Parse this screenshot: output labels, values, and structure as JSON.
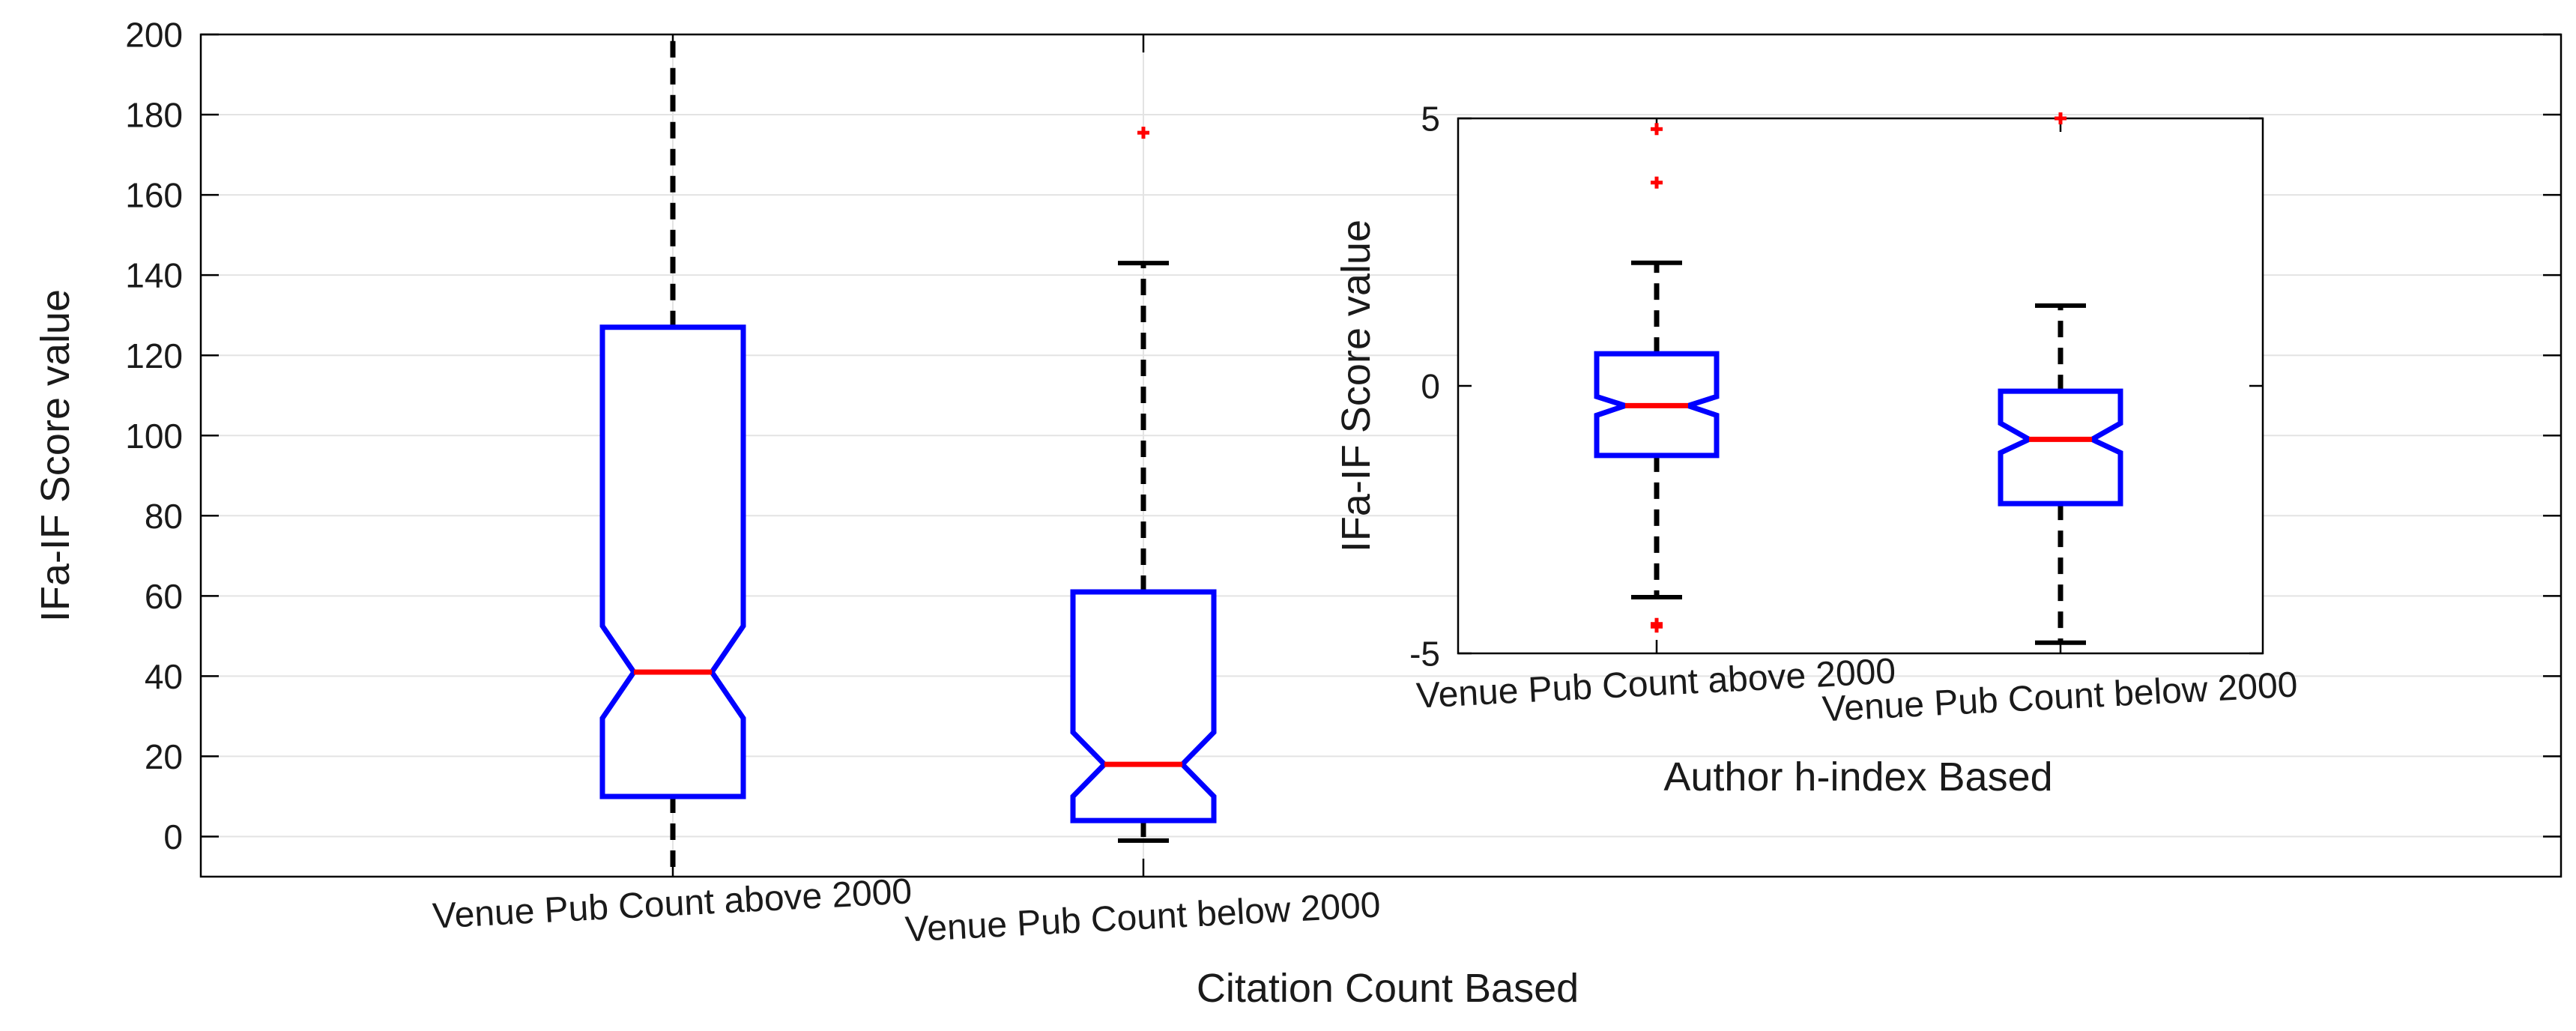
{
  "colors": {
    "box": "#0000ff",
    "median": "#ff0000",
    "outlier": "#ff0000",
    "whisker": "#000000",
    "grid": "#e3e3e3",
    "axis": "#000000"
  },
  "chart_data": [
    {
      "type": "boxplot",
      "notched": true,
      "xlabel": "Citation Count Based",
      "ylabel": "IFa-IF Score value",
      "ylim": [
        -10,
        200
      ],
      "yticks": [
        0,
        20,
        40,
        60,
        80,
        100,
        120,
        140,
        160,
        180,
        200
      ],
      "tick_labels_rotated": true,
      "grid": true,
      "categories": [
        "Venue Pub Count above 2000",
        "Venue Pub Count below 2000"
      ],
      "boxes": [
        {
          "category": "Venue Pub Count above 2000",
          "whisker_low": -10,
          "q1": 10,
          "notch_low": 29.5,
          "median": 41,
          "notch_high": 52.5,
          "q3": 127,
          "whisker_high": 200,
          "outliers": []
        },
        {
          "category": "Venue Pub Count below 2000",
          "whisker_low": -1,
          "q1": 4,
          "notch_low": 10,
          "median": 18,
          "notch_high": 26,
          "q3": 61,
          "whisker_high": 143,
          "outliers": [
            175.5
          ]
        }
      ]
    },
    {
      "type": "boxplot",
      "inset": true,
      "notched": true,
      "xlabel": "Author h-index Based",
      "ylabel": "IFa-IF Score value",
      "ylim": [
        -5,
        5
      ],
      "yticks": [
        -5,
        0,
        5
      ],
      "tick_labels_rotated": true,
      "grid": false,
      "categories": [
        "Venue Pub Count above 2000",
        "Venue Pub Count below 2000"
      ],
      "boxes": [
        {
          "category": "Venue Pub Count above 2000",
          "whisker_low": -3.95,
          "q1": -1.3,
          "notch_low": -0.55,
          "median": -0.37,
          "notch_high": -0.2,
          "q3": 0.6,
          "whisker_high": 2.3,
          "outliers": [
            4.8,
            3.8,
            -4.45,
            -4.5
          ]
        },
        {
          "category": "Venue Pub Count below 2000",
          "whisker_low": -4.8,
          "q1": -2.2,
          "notch_low": -1.25,
          "median": -1.0,
          "notch_high": -0.7,
          "q3": -0.1,
          "whisker_high": 1.5,
          "outliers": [
            5.0
          ]
        }
      ]
    }
  ]
}
